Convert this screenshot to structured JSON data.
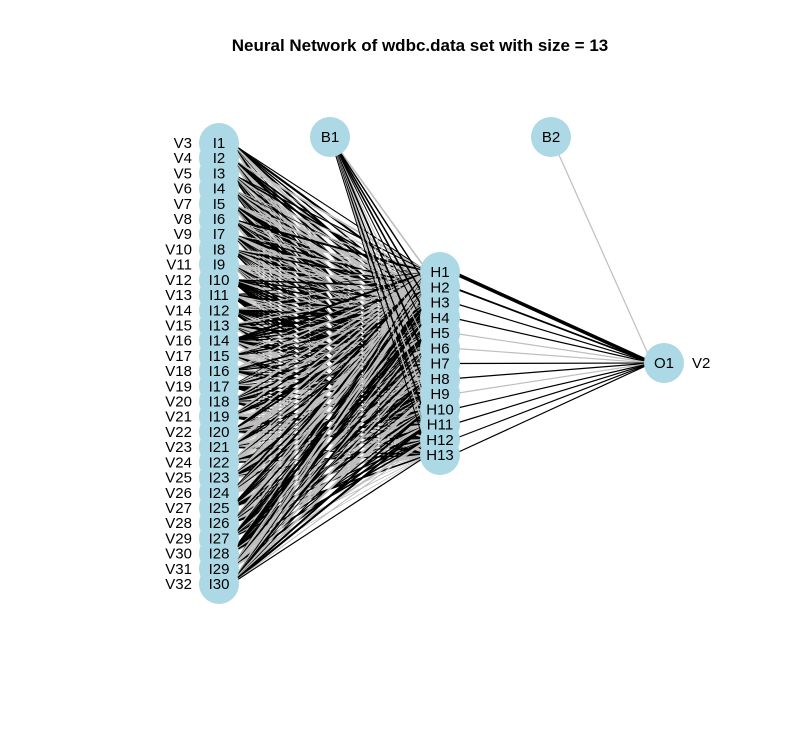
{
  "title": "Neural Network of wdbc.data set with size =  13",
  "colors": {
    "node": "#add8e6",
    "edge_positive": "#000000",
    "edge_negative": "#bebebe",
    "text": "#000000"
  },
  "input_nodes": [
    "I1",
    "I2",
    "I3",
    "I4",
    "I5",
    "I6",
    "I7",
    "I8",
    "I9",
    "I10",
    "I11",
    "I12",
    "I13",
    "I14",
    "I15",
    "I16",
    "I17",
    "I18",
    "I19",
    "I20",
    "I21",
    "I22",
    "I23",
    "I24",
    "I25",
    "I26",
    "I27",
    "I28",
    "I29",
    "I30"
  ],
  "input_vars": [
    "V3",
    "V4",
    "V5",
    "V6",
    "V7",
    "V8",
    "V9",
    "V10",
    "V11",
    "V12",
    "V13",
    "V14",
    "V15",
    "V16",
    "V17",
    "V18",
    "V19",
    "V20",
    "V21",
    "V22",
    "V23",
    "V24",
    "V25",
    "V26",
    "V27",
    "V28",
    "V29",
    "V30",
    "V31",
    "V32"
  ],
  "hidden_nodes": [
    "H1",
    "H2",
    "H3",
    "H4",
    "H5",
    "H6",
    "H7",
    "H8",
    "H9",
    "H10",
    "H11",
    "H12",
    "H13"
  ],
  "output_nodes": [
    "O1"
  ],
  "output_vars": [
    "V2"
  ],
  "bias_nodes": [
    "B1",
    "B2"
  ]
}
